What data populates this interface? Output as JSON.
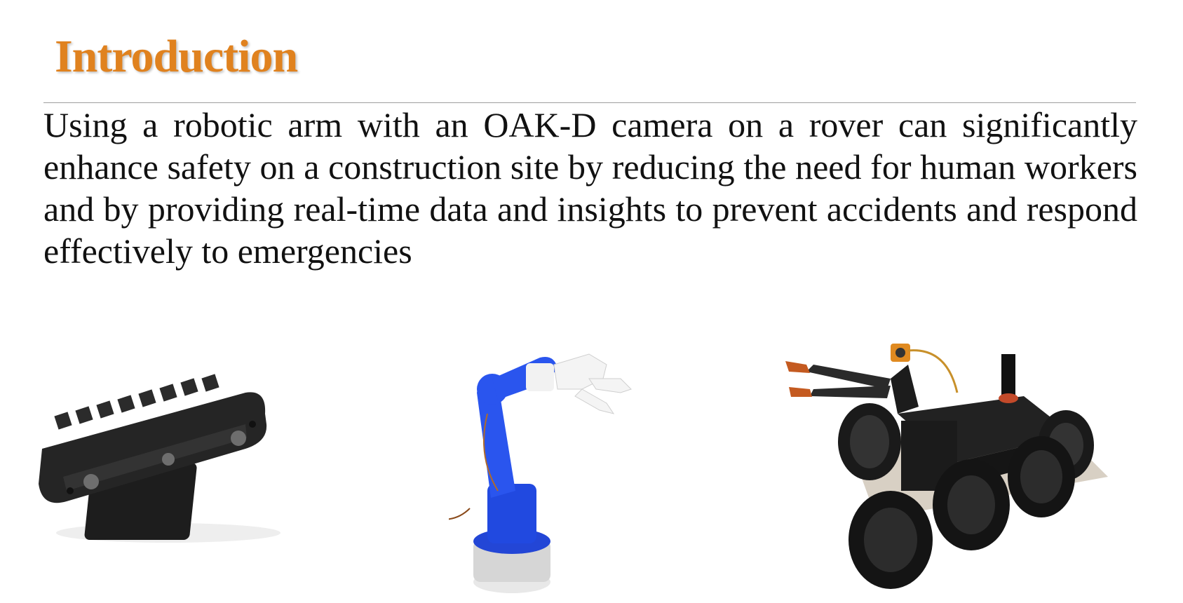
{
  "slide": {
    "title": "Introduction",
    "title_color": "#E0821F",
    "body": "Using a robotic arm with an OAK-D camera on a rover can significantly enhance safety on a construction site by reducing the need for human workers and by providing real-time data and insights to prevent accidents and respond effectively to emergencies"
  },
  "images": [
    {
      "name": "oak-d-camera-image"
    },
    {
      "name": "robotic-arm-image"
    },
    {
      "name": "rover-with-arm-image"
    }
  ]
}
